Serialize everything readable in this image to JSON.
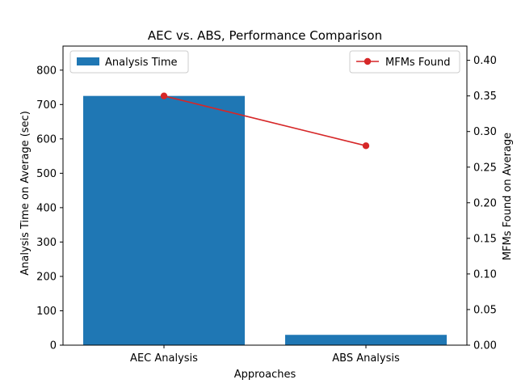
{
  "chart_data": {
    "type": "bar",
    "title": "AEC vs. ABS, Performance Comparison",
    "xlabel": "Approaches",
    "ylabel": "Analysis Time on Average (sec)",
    "y2label": "MFMs Found on Average",
    "categories": [
      "AEC Analysis",
      "ABS Analysis"
    ],
    "series": [
      {
        "name": "Analysis Time",
        "type": "bar",
        "axis": "left",
        "color": "#1f77b4",
        "values": [
          725,
          30
        ]
      },
      {
        "name": "MFMs Found",
        "type": "line",
        "axis": "right",
        "color": "#d62728",
        "marker": "circle",
        "values": [
          0.35,
          0.28
        ]
      }
    ],
    "ylim": [
      0,
      870
    ],
    "y2lim": [
      0,
      0.42
    ],
    "yticks": [
      "0",
      "100",
      "200",
      "300",
      "400",
      "500",
      "600",
      "700",
      "800"
    ],
    "y2ticks": [
      "0.00",
      "0.05",
      "0.10",
      "0.15",
      "0.20",
      "0.25",
      "0.30",
      "0.35",
      "0.40"
    ],
    "legend_left_placement": "upper-left",
    "legend_right_placement": "upper-right",
    "grid": false
  }
}
